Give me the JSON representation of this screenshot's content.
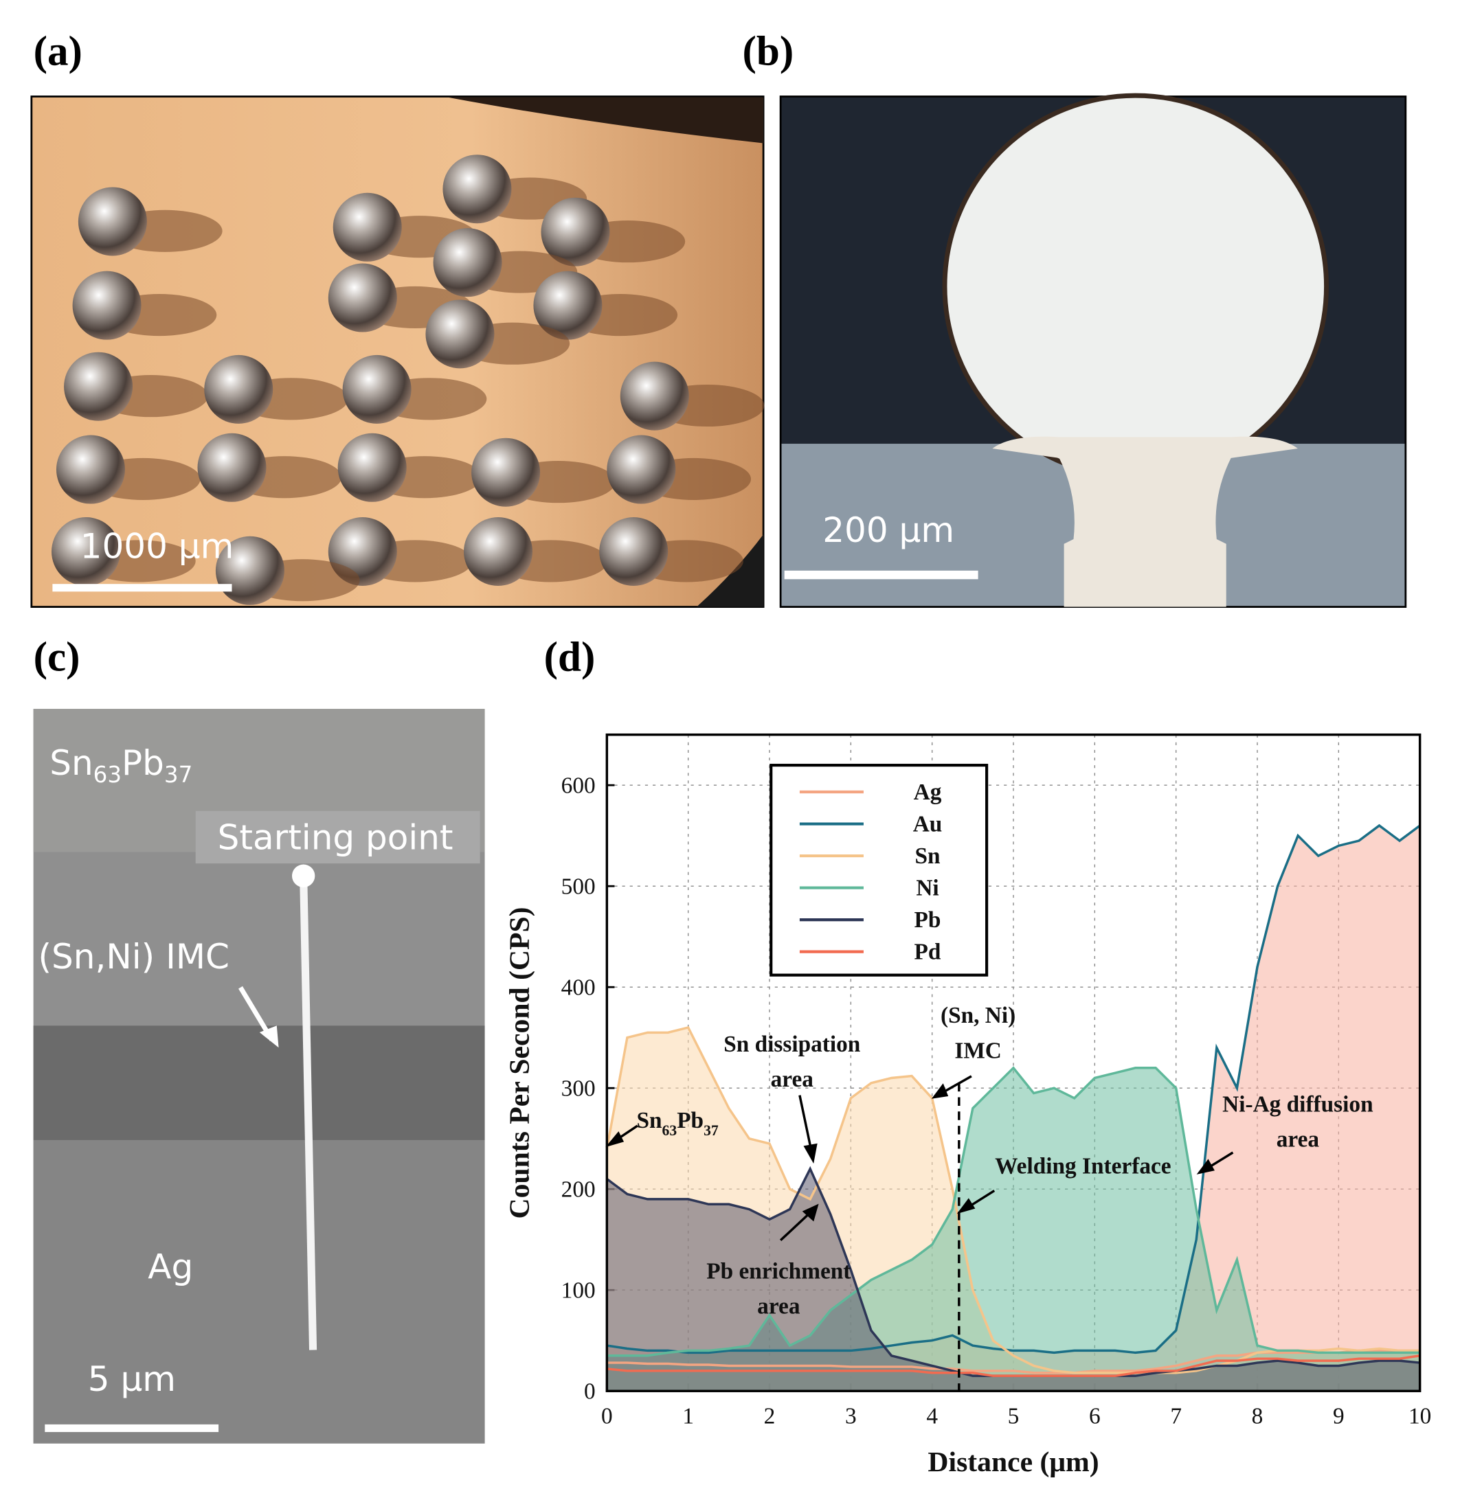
{
  "panels": {
    "a": {
      "label": "(a)",
      "scale": "1000 μm"
    },
    "b": {
      "label": "(b)",
      "scale": "200 μm"
    },
    "c": {
      "label": "(c)",
      "solder": [
        "Sn",
        "63",
        "Pb",
        "37"
      ],
      "start": "Starting  point",
      "imc": "(Sn,Ni) IMC",
      "ag": "Ag",
      "scale": "5 μm"
    },
    "d": {
      "label": "(d)"
    }
  },
  "chart_data": {
    "type": "area",
    "xlabel": "Distance (μm)",
    "ylabel": "Counts Per Second (CPS)",
    "x": [
      0,
      0.25,
      0.5,
      0.75,
      1,
      1.25,
      1.5,
      1.75,
      2,
      2.25,
      2.5,
      2.75,
      3,
      3.25,
      3.5,
      3.75,
      4,
      4.25,
      4.5,
      4.75,
      5,
      5.25,
      5.5,
      5.75,
      6,
      6.25,
      6.5,
      6.75,
      7,
      7.25,
      7.5,
      7.75,
      8,
      8.25,
      8.5,
      8.75,
      9,
      9.25,
      9.5,
      9.75,
      10
    ],
    "xlim": [
      0,
      10
    ],
    "xticks": [
      0,
      1,
      2,
      3,
      4,
      5,
      6,
      7,
      8,
      9,
      10
    ],
    "ylim": [
      0,
      650
    ],
    "yticks": [
      0,
      100,
      200,
      300,
      400,
      500,
      600
    ],
    "grid": true,
    "series": [
      {
        "name": "Ag",
        "color": "#f4a582",
        "fill": "#f8cdb5",
        "values": [
          28,
          28,
          27,
          27,
          26,
          26,
          25,
          25,
          25,
          25,
          25,
          25,
          24,
          24,
          24,
          24,
          22,
          22,
          20,
          20,
          20,
          18,
          18,
          18,
          20,
          20,
          20,
          22,
          25,
          30,
          35,
          35,
          38,
          38,
          38,
          38,
          38,
          40,
          40,
          40,
          40
        ]
      },
      {
        "name": "Au",
        "color": "#1a6e86",
        "fill": "#f7b0a0",
        "values": [
          45,
          42,
          40,
          40,
          38,
          38,
          40,
          40,
          40,
          40,
          40,
          40,
          40,
          42,
          45,
          48,
          50,
          55,
          45,
          42,
          40,
          40,
          38,
          40,
          40,
          40,
          38,
          40,
          60,
          150,
          340,
          300,
          420,
          500,
          550,
          530,
          540,
          545,
          560,
          545,
          560
        ]
      },
      {
        "name": "Sn",
        "color": "#f5c48a",
        "fill": "#fbd9ad",
        "values": [
          240,
          350,
          355,
          355,
          360,
          320,
          280,
          250,
          245,
          200,
          190,
          230,
          290,
          305,
          310,
          312,
          290,
          200,
          100,
          50,
          35,
          25,
          20,
          18,
          18,
          18,
          18,
          18,
          18,
          20,
          25,
          30,
          38,
          40,
          40,
          40,
          42,
          40,
          42,
          40,
          40
        ]
      },
      {
        "name": "Ni",
        "color": "#5fb89a",
        "fill": "#6fc0a2",
        "values": [
          35,
          35,
          35,
          38,
          40,
          40,
          42,
          45,
          75,
          45,
          55,
          80,
          95,
          110,
          120,
          130,
          145,
          180,
          280,
          300,
          320,
          295,
          300,
          290,
          310,
          315,
          320,
          320,
          300,
          180,
          80,
          130,
          45,
          40,
          40,
          38,
          38,
          38,
          38,
          38,
          38
        ]
      },
      {
        "name": "Pb",
        "color": "#2d3656",
        "fill": "#5c5a6e",
        "values": [
          210,
          195,
          190,
          190,
          190,
          185,
          185,
          180,
          170,
          180,
          220,
          175,
          120,
          60,
          35,
          30,
          25,
          20,
          15,
          15,
          15,
          15,
          15,
          15,
          15,
          15,
          15,
          18,
          20,
          22,
          25,
          25,
          28,
          30,
          28,
          25,
          25,
          28,
          30,
          30,
          28
        ]
      },
      {
        "name": "Pd",
        "color": "#f26b50",
        "fill": "none",
        "values": [
          22,
          20,
          20,
          20,
          20,
          20,
          20,
          20,
          20,
          20,
          20,
          20,
          20,
          20,
          20,
          20,
          18,
          18,
          18,
          15,
          15,
          15,
          15,
          15,
          15,
          15,
          18,
          20,
          20,
          25,
          30,
          30,
          32,
          32,
          30,
          30,
          30,
          32,
          32,
          32,
          35
        ]
      }
    ],
    "annotations": [
      {
        "lines": [
          "Sn dissipation",
          "area"
        ]
      },
      {
        "lines": [
          "(Sn, Ni)",
          "IMC"
        ]
      },
      {
        "lines": [
          "Welding Interface"
        ]
      },
      {
        "lines": [
          "Ni-Ag diffusion",
          "area"
        ]
      },
      {
        "lines": [
          "Pb enrichment",
          "area"
        ]
      },
      {
        "parts": [
          "Sn",
          "63",
          "Pb",
          "37"
        ]
      }
    ]
  }
}
